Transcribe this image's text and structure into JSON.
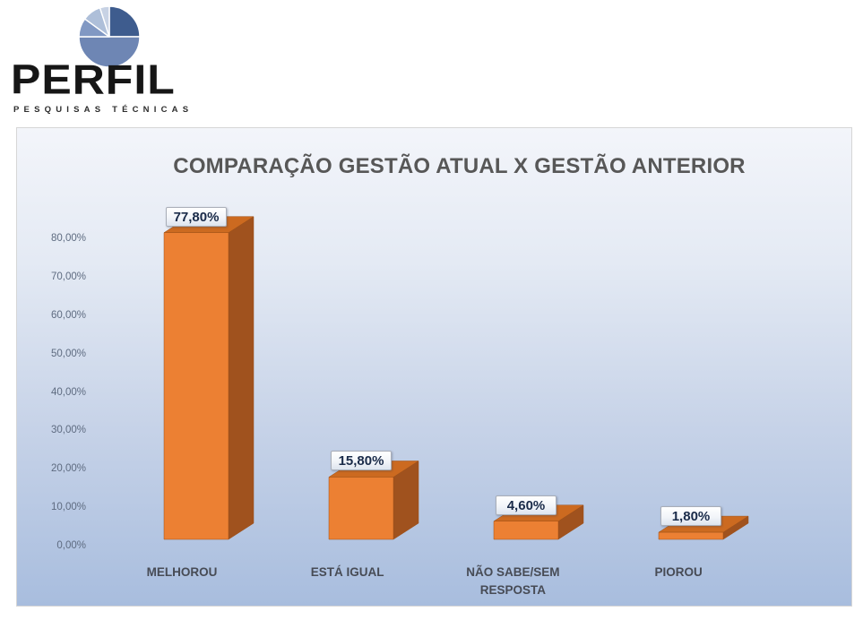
{
  "logo": {
    "brand": "PERFIL",
    "tagline": "PESQUISAS TÉCNICAS",
    "pie_slice_colors": [
      "#3e5c8e",
      "#6e86b4",
      "#8198c3",
      "#aebfd9",
      "#c7d2e4"
    ]
  },
  "chart_data": {
    "type": "bar",
    "style": "3d-column",
    "title": "COMPARAÇÃO GESTÃO ATUAL X GESTÃO ANTERIOR",
    "categories": [
      "MELHOROU",
      "ESTÁ IGUAL",
      "NÃO SABE/SEM RESPOSTA",
      "PIOROU"
    ],
    "values": [
      77.8,
      15.8,
      4.6,
      1.8
    ],
    "data_labels": [
      "77,80%",
      "15,80%",
      "4,60%",
      "1,80%"
    ],
    "y_ticks": [
      "80,00%",
      "70,00%",
      "60,00%",
      "50,00%",
      "40,00%",
      "30,00%",
      "20,00%",
      "10,00%",
      "0,00%"
    ],
    "ylim": [
      0,
      80
    ],
    "grid": false,
    "legend": "none",
    "xlabel": "",
    "ylabel": "",
    "bar_front_color": "#ec8033",
    "bar_side_color": "#a0521e",
    "bar_top_color": "#cc6a20",
    "bar_edge_color": "#9c4f17"
  }
}
